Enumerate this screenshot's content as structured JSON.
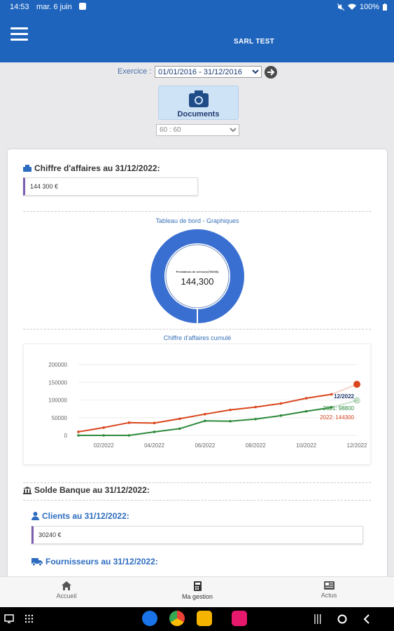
{
  "statusbar": {
    "time": "14:53",
    "date": "mar. 6 juin",
    "battery": "100%"
  },
  "header": {
    "title": "SARL TEST",
    "menu_icon": "hamburger-icon"
  },
  "exercice": {
    "label": "Exercice :",
    "selected": "01/01/2016 - 31/12/2016"
  },
  "documents": {
    "label": "Documents",
    "icon": "camera-icon",
    "select_value": "60 : 60"
  },
  "ca": {
    "title": "Chiffre d'affaires au 31/12/2022:",
    "value": "144 300 €"
  },
  "dashboard": {
    "title": "Tableau de bord - Graphiques",
    "donut_label": "Prestations de services(706000)",
    "donut_value": "144,300"
  },
  "cumul_title": "Chiffre d'affaires cumulé",
  "chart_data": {
    "type": "line",
    "title": "",
    "yticks": [
      "200000",
      "150000",
      "100000",
      "50000",
      "0"
    ],
    "ylim": [
      0,
      200000
    ],
    "xticks": [
      "02/2022",
      "04/2022",
      "06/2022",
      "08/2022",
      "10/2022",
      "12/2022"
    ],
    "x": [
      "01/2022",
      "02/2022",
      "03/2022",
      "04/2022",
      "05/2022",
      "06/2022",
      "07/2022",
      "08/2022",
      "09/2022",
      "10/2022",
      "11/2022",
      "12/2022"
    ],
    "series": [
      {
        "name": "2022",
        "color": "#d9461e",
        "values": [
          10000,
          22000,
          36000,
          35000,
          47000,
          60000,
          72000,
          80000,
          90000,
          105000,
          116000,
          144300
        ]
      },
      {
        "name": "2021",
        "color": "#2e8a3c",
        "values": [
          0,
          0,
          0,
          10000,
          19000,
          41000,
          40000,
          46000,
          56000,
          68000,
          79000,
          98800
        ]
      }
    ],
    "tooltip": {
      "period": "12/2022",
      "line_2021": "2021: 98800",
      "line_2022": "2022: 144300"
    }
  },
  "banque": {
    "title": "Solde Banque au 31/12/2022:"
  },
  "clients": {
    "title": "Clients au 31/12/2022:",
    "value": "30240 €"
  },
  "fournisseurs": {
    "title": "Fournisseurs au 31/12/2022:"
  },
  "nav": {
    "items": [
      {
        "label": "Accueil",
        "icon": "home-icon"
      },
      {
        "label": "Ma gestion",
        "icon": "calculator-icon"
      },
      {
        "label": "Actus",
        "icon": "news-icon"
      }
    ]
  }
}
